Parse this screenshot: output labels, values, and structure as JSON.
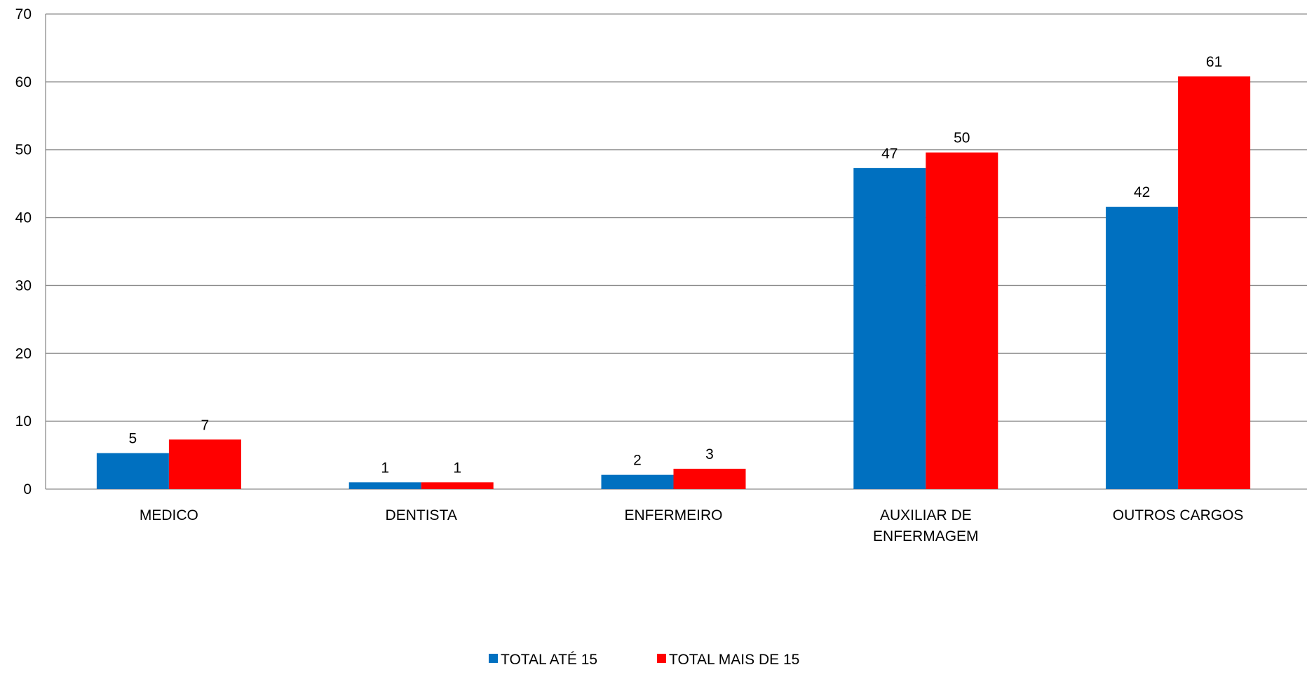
{
  "chart_data": {
    "type": "bar",
    "categories": [
      [
        "MEDICO"
      ],
      [
        "DENTISTA"
      ],
      [
        "ENFERMEIRO"
      ],
      [
        "AUXILIAR DE",
        "ENFERMAGEM"
      ],
      [
        "OUTROS CARGOS"
      ]
    ],
    "series": [
      {
        "name": "TOTAL ATÉ 15",
        "color": "#0070C0",
        "values": [
          5.3,
          1,
          2.1,
          47.3,
          41.6
        ],
        "labels": [
          "5",
          "1",
          "2",
          "47",
          "42"
        ]
      },
      {
        "name": "TOTAL MAIS DE 15",
        "color": "#FF0000",
        "values": [
          7.3,
          1,
          3,
          49.6,
          60.8
        ],
        "labels": [
          "7",
          "1",
          "3",
          "50",
          "61"
        ]
      }
    ],
    "ylim": [
      0,
      70
    ],
    "yticks": [
      0,
      10,
      20,
      30,
      40,
      50,
      60,
      70
    ],
    "grid": true,
    "legend": "bottom-center"
  }
}
